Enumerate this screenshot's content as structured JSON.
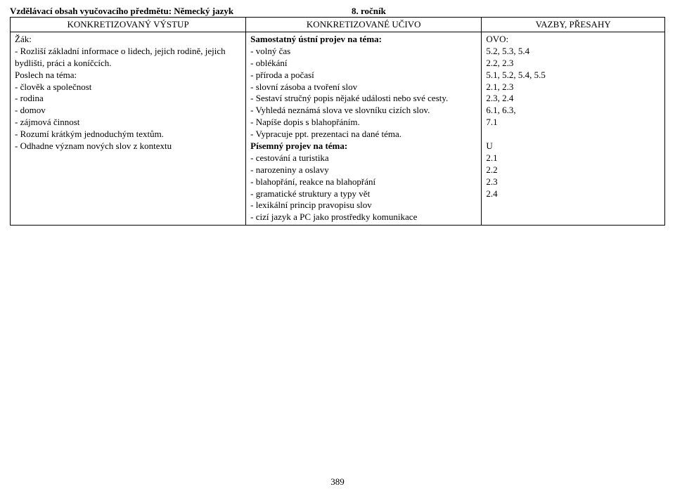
{
  "header": {
    "subject_line": "Vzdělávací obsah vyučovacího předmětu: Německý jazyk",
    "grade": "8. ročník"
  },
  "table": {
    "columns": [
      "KONKRETIZOVANÝ VÝSTUP",
      "KONKRETIZOVANÉ UČIVO",
      "VAZBY, PŘESAHY"
    ],
    "col1_text": "Žák:\n- Rozliší základní informace o lidech, jejich rodině, jejich bydlišti, práci a koníčcích.\nPoslech na téma:\n- člověk a společnost\n- rodina\n- domov\n- zájmová činnost\n- Rozumí krátkým jednoduchým textům.\n- Odhadne význam nových slov z kontextu",
    "col2_lead_bold": "Samostatný ústní projev na téma:",
    "col2_part1": "- volný čas\n- oblékání\n- příroda a počasí\n- slovní zásoba a tvoření slov\n- Sestaví stručný popis nějaké události nebo své cesty.\n- Vyhledá neznámá slova ve slovníku cizích slov.\n- Napíše dopis s blahopřáním.\n- Vypracuje ppt. prezentaci na dané téma.",
    "col2_mid_bold": "Písemný projev na téma:",
    "col2_part2": "- cestování a turistika\n- narozeniny a oslavy\n- blahopřání, reakce na blahopřání\n- gramatické struktury a typy vět\n- lexikální princip pravopisu slov\n- cizí jazyk a PC jako prostředky komunikace",
    "col3_text": "OVO:\n5.2, 5.3, 5.4\n2.2, 2.3\n5.1, 5.2, 5.4, 5.5\n2.1, 2.3\n2.3, 2.4\n6.1, 6.3,\n7.1\n\nU\n2.1\n2.2\n2.3\n2.4"
  },
  "footer": {
    "page_number": "389"
  }
}
